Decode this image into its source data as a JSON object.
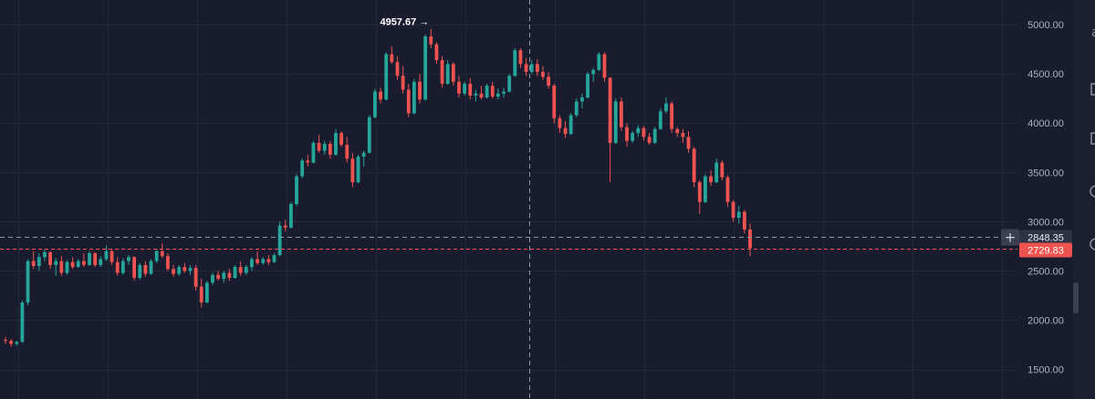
{
  "chart_data": {
    "type": "candlestick",
    "ylim": [
      1200,
      5250
    ],
    "y_ticks": [
      1500,
      2000,
      2500,
      3000,
      3500,
      4000,
      4500,
      5000
    ],
    "y_tick_labels": [
      "1500.00",
      "2000.00",
      "2500.00",
      "3000.00",
      "3500.00",
      "4000.00",
      "4500.00",
      "5000.00"
    ],
    "grid": true,
    "high_annotation": {
      "label": "4957.67 →",
      "value": 4957.67
    },
    "crosshair": {
      "price": 2848.35,
      "label": "2848.35"
    },
    "last_price": {
      "price": 2729.83,
      "label": "2729.83"
    },
    "colors": {
      "up": "#26a69a",
      "down": "#ef5350",
      "background": "#181c2e",
      "grid": "#232839",
      "axis_text": "#aeb3c2"
    },
    "candles": [
      [
        1800,
        1830,
        1760,
        1790
      ],
      [
        1790,
        1810,
        1730,
        1760
      ],
      [
        1760,
        1790,
        1740,
        1780
      ],
      [
        1780,
        2200,
        1770,
        2180
      ],
      [
        2180,
        2620,
        2150,
        2600
      ],
      [
        2600,
        2700,
        2520,
        2550
      ],
      [
        2550,
        2680,
        2500,
        2640
      ],
      [
        2640,
        2720,
        2600,
        2690
      ],
      [
        2690,
        2700,
        2520,
        2560
      ],
      [
        2560,
        2630,
        2450,
        2600
      ],
      [
        2600,
        2650,
        2450,
        2480
      ],
      [
        2480,
        2610,
        2460,
        2590
      ],
      [
        2590,
        2640,
        2520,
        2540
      ],
      [
        2540,
        2620,
        2530,
        2600
      ],
      [
        2600,
        2680,
        2540,
        2560
      ],
      [
        2560,
        2700,
        2550,
        2680
      ],
      [
        2680,
        2690,
        2540,
        2560
      ],
      [
        2560,
        2650,
        2540,
        2620
      ],
      [
        2620,
        2760,
        2600,
        2700
      ],
      [
        2700,
        2720,
        2560,
        2590
      ],
      [
        2590,
        2640,
        2450,
        2480
      ],
      [
        2480,
        2630,
        2460,
        2600
      ],
      [
        2600,
        2660,
        2560,
        2640
      ],
      [
        2640,
        2650,
        2400,
        2430
      ],
      [
        2430,
        2580,
        2410,
        2560
      ],
      [
        2560,
        2600,
        2440,
        2470
      ],
      [
        2470,
        2620,
        2460,
        2600
      ],
      [
        2600,
        2720,
        2580,
        2700
      ],
      [
        2700,
        2780,
        2630,
        2650
      ],
      [
        2650,
        2680,
        2500,
        2520
      ],
      [
        2520,
        2560,
        2440,
        2470
      ],
      [
        2470,
        2560,
        2450,
        2540
      ],
      [
        2540,
        2580,
        2480,
        2500
      ],
      [
        2500,
        2560,
        2460,
        2530
      ],
      [
        2530,
        2560,
        2300,
        2340
      ],
      [
        2340,
        2420,
        2130,
        2180
      ],
      [
        2180,
        2400,
        2170,
        2380
      ],
      [
        2380,
        2480,
        2360,
        2460
      ],
      [
        2460,
        2500,
        2400,
        2420
      ],
      [
        2420,
        2500,
        2380,
        2480
      ],
      [
        2480,
        2520,
        2400,
        2430
      ],
      [
        2430,
        2560,
        2420,
        2540
      ],
      [
        2540,
        2600,
        2450,
        2480
      ],
      [
        2480,
        2560,
        2460,
        2540
      ],
      [
        2540,
        2640,
        2500,
        2620
      ],
      [
        2620,
        2700,
        2560,
        2580
      ],
      [
        2580,
        2640,
        2560,
        2620
      ],
      [
        2620,
        2660,
        2560,
        2590
      ],
      [
        2590,
        2680,
        2580,
        2660
      ],
      [
        2660,
        3000,
        2650,
        2960
      ],
      [
        2960,
        3020,
        2900,
        2940
      ],
      [
        2940,
        3200,
        2930,
        3180
      ],
      [
        3180,
        3480,
        3160,
        3460
      ],
      [
        3460,
        3640,
        3440,
        3620
      ],
      [
        3620,
        3680,
        3560,
        3600
      ],
      [
        3600,
        3820,
        3590,
        3800
      ],
      [
        3800,
        3880,
        3700,
        3720
      ],
      [
        3720,
        3820,
        3680,
        3790
      ],
      [
        3790,
        3820,
        3640,
        3680
      ],
      [
        3680,
        3940,
        3670,
        3900
      ],
      [
        3900,
        3920,
        3760,
        3780
      ],
      [
        3780,
        3860,
        3600,
        3640
      ],
      [
        3640,
        3700,
        3350,
        3400
      ],
      [
        3400,
        3680,
        3390,
        3660
      ],
      [
        3660,
        3720,
        3560,
        3700
      ],
      [
        3700,
        4080,
        3690,
        4060
      ],
      [
        4060,
        4350,
        4050,
        4320
      ],
      [
        4320,
        4360,
        4200,
        4240
      ],
      [
        4240,
        4720,
        4230,
        4700
      ],
      [
        4700,
        4780,
        4600,
        4620
      ],
      [
        4620,
        4680,
        4440,
        4480
      ],
      [
        4480,
        4580,
        4300,
        4340
      ],
      [
        4340,
        4400,
        4060,
        4100
      ],
      [
        4100,
        4450,
        4090,
        4420
      ],
      [
        4420,
        4500,
        4200,
        4240
      ],
      [
        4240,
        4900,
        4230,
        4880
      ],
      [
        4880,
        4957.67,
        4760,
        4800
      ],
      [
        4800,
        4820,
        4600,
        4640
      ],
      [
        4640,
        4680,
        4360,
        4400
      ],
      [
        4400,
        4640,
        4390,
        4600
      ],
      [
        4600,
        4620,
        4380,
        4420
      ],
      [
        4420,
        4480,
        4260,
        4300
      ],
      [
        4300,
        4420,
        4280,
        4400
      ],
      [
        4400,
        4460,
        4240,
        4280
      ],
      [
        4280,
        4340,
        4220,
        4300
      ],
      [
        4300,
        4380,
        4240,
        4260
      ],
      [
        4260,
        4400,
        4250,
        4380
      ],
      [
        4380,
        4420,
        4250,
        4270
      ],
      [
        4270,
        4350,
        4240,
        4300
      ],
      [
        4300,
        4360,
        4260,
        4320
      ],
      [
        4320,
        4500,
        4310,
        4480
      ],
      [
        4480,
        4760,
        4470,
        4740
      ],
      [
        4740,
        4760,
        4560,
        4600
      ],
      [
        4600,
        4660,
        4480,
        4520
      ],
      [
        4520,
        4640,
        4500,
        4600
      ],
      [
        4600,
        4650,
        4480,
        4520
      ],
      [
        4520,
        4580,
        4440,
        4470
      ],
      [
        4470,
        4520,
        4350,
        4380
      ],
      [
        4380,
        4400,
        4000,
        4050
      ],
      [
        4050,
        4080,
        3900,
        3950
      ],
      [
        3950,
        4020,
        3850,
        3890
      ],
      [
        3890,
        4100,
        3880,
        4080
      ],
      [
        4080,
        4250,
        4060,
        4220
      ],
      [
        4220,
        4300,
        4150,
        4260
      ],
      [
        4260,
        4520,
        4250,
        4500
      ],
      [
        4500,
        4560,
        4420,
        4540
      ],
      [
        4540,
        4720,
        4530,
        4700
      ],
      [
        4700,
        4720,
        4420,
        4460
      ],
      [
        4460,
        4470,
        3400,
        3800
      ],
      [
        3800,
        4250,
        3790,
        4220
      ],
      [
        4220,
        4260,
        3920,
        3960
      ],
      [
        3960,
        4000,
        3760,
        3820
      ],
      [
        3820,
        3920,
        3800,
        3900
      ],
      [
        3900,
        3980,
        3860,
        3950
      ],
      [
        3950,
        3970,
        3820,
        3860
      ],
      [
        3860,
        3900,
        3780,
        3800
      ],
      [
        3800,
        3960,
        3790,
        3940
      ],
      [
        3940,
        4150,
        3930,
        4120
      ],
      [
        4120,
        4260,
        4100,
        4200
      ],
      [
        4200,
        4220,
        3900,
        3940
      ],
      [
        3940,
        3960,
        3860,
        3900
      ],
      [
        3900,
        3940,
        3800,
        3860
      ],
      [
        3860,
        3920,
        3700,
        3740
      ],
      [
        3740,
        3760,
        3350,
        3400
      ],
      [
        3400,
        3420,
        3080,
        3200
      ],
      [
        3200,
        3480,
        3190,
        3460
      ],
      [
        3460,
        3520,
        3360,
        3400
      ],
      [
        3400,
        3640,
        3390,
        3600
      ],
      [
        3600,
        3620,
        3420,
        3450
      ],
      [
        3450,
        3470,
        3150,
        3200
      ],
      [
        3200,
        3220,
        3000,
        3040
      ],
      [
        3040,
        3160,
        2980,
        3100
      ],
      [
        3100,
        3120,
        2880,
        2920
      ],
      [
        2920,
        2980,
        2650,
        2729.83
      ]
    ]
  }
}
